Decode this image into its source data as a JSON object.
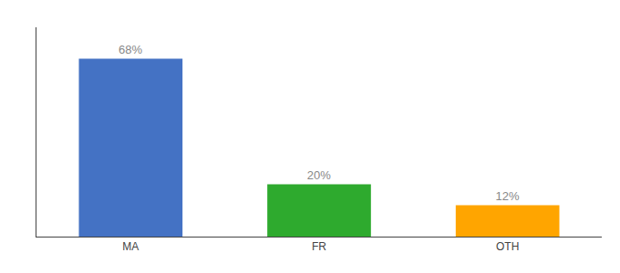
{
  "chart_data": {
    "type": "bar",
    "categories": [
      "MA",
      "FR",
      "OTH"
    ],
    "values": [
      68,
      20,
      12
    ],
    "value_labels": [
      "68%",
      "20%",
      "12%"
    ],
    "colors": [
      "#4472C4",
      "#2EAA2E",
      "#FFA500"
    ],
    "ylim": [
      0,
      80
    ],
    "grid": false,
    "data_labels": true,
    "tick_labels": "x"
  }
}
